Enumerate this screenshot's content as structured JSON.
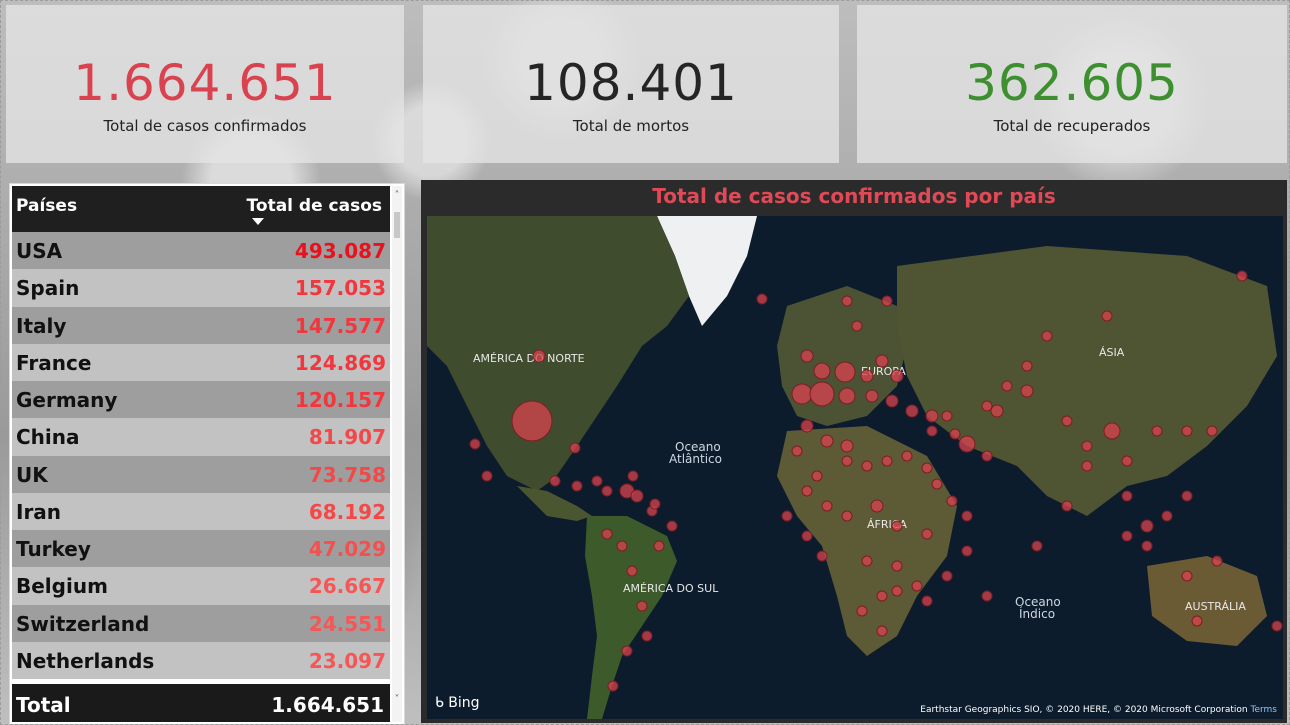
{
  "kpis": {
    "confirmed": {
      "value": "1.664.651",
      "label": "Total de casos confirmados",
      "color": "#d9434f"
    },
    "deaths": {
      "value": "108.401",
      "label": "Total de mortos",
      "color": "#252525"
    },
    "recovered": {
      "value": "362.605",
      "label": "Total de recuperados",
      "color": "#3e8f2f"
    }
  },
  "table": {
    "headers": {
      "country": "Países",
      "cases": "Total de casos"
    },
    "sort_icon": "sort-descending-icon",
    "rows": [
      {
        "country": "USA",
        "cases": "493.087",
        "color": "#e8121f"
      },
      {
        "country": "Spain",
        "cases": "157.053",
        "color": "#f1373d"
      },
      {
        "country": "Italy",
        "cases": "147.577",
        "color": "#f1373d"
      },
      {
        "country": "France",
        "cases": "124.869",
        "color": "#f1373d"
      },
      {
        "country": "Germany",
        "cases": "120.157",
        "color": "#f1373d"
      },
      {
        "country": "China",
        "cases": "81.907",
        "color": "#f44848"
      },
      {
        "country": "UK",
        "cases": "73.758",
        "color": "#f44848"
      },
      {
        "country": "Iran",
        "cases": "68.192",
        "color": "#f44848"
      },
      {
        "country": "Turkey",
        "cases": "47.029",
        "color": "#f54f4f"
      },
      {
        "country": "Belgium",
        "cases": "26.667",
        "color": "#f65656"
      },
      {
        "country": "Switzerland",
        "cases": "24.551",
        "color": "#f65656"
      },
      {
        "country": "Netherlands",
        "cases": "23.097",
        "color": "#f65656"
      }
    ],
    "total_label": "Total",
    "total_value": "1.664.651"
  },
  "map": {
    "title": "Total de casos confirmados por país",
    "title_color": "#e04a56",
    "labels": {
      "north_america": "AMÉRICA DO NORTE",
      "europe": "EUROPA",
      "asia": "ÁSIA",
      "africa": "ÁFRICA",
      "south_america": "AMÉRICA DO SUL",
      "australia": "AUSTRÁLIA",
      "atlantic_1": "Oceano",
      "atlantic_2": "Atlântico",
      "indian_1": "Oceano",
      "indian_2": "Índico"
    },
    "provider": "Bing",
    "attribution": "Earthstar Geographics SIO, © 2020 HERE, © 2020 Microsoft Corporation",
    "terms": "Terms",
    "bubble_color": "#d9434f"
  }
}
